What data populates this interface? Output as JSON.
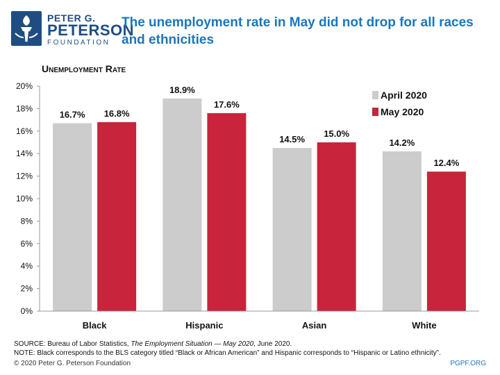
{
  "logo": {
    "line1": "PETER G.",
    "line2": "PETERSON",
    "line3": "FOUNDATION"
  },
  "title": "The unemployment rate in May did not drop for all races and ethnicities",
  "chart_data": {
    "type": "bar",
    "ylabel": "Unemployment Rate",
    "categories": [
      "Black",
      "Hispanic",
      "Asian",
      "White"
    ],
    "series": [
      {
        "name": "April 2020",
        "color": "#cccccc",
        "values": [
          16.7,
          18.9,
          14.5,
          14.2
        ],
        "labels": [
          "16.7%",
          "18.9%",
          "14.5%",
          "14.2%"
        ]
      },
      {
        "name": "May 2020",
        "color": "#c8243b",
        "values": [
          16.8,
          17.6,
          15.0,
          12.4
        ],
        "labels": [
          "16.8%",
          "17.6%",
          "15.0%",
          "12.4%"
        ]
      }
    ],
    "ylim": [
      0,
      20
    ],
    "yticks": [
      "0%",
      "2%",
      "4%",
      "6%",
      "8%",
      "10%",
      "12%",
      "14%",
      "16%",
      "18%",
      "20%"
    ],
    "legend_position": "top-right",
    "grid": false
  },
  "footer": {
    "source_prefix": "SOURCE: Bureau of Labor Statistics, ",
    "source_italic": "The Employment Situation — May 2020",
    "source_suffix": ", June 2020.",
    "note": "NOTE: Black corresponds to the BLS category titled “Black or African American” and Hispanic corresponds to “Hispanic or Latino ethnicity”.",
    "copyright": "© 2020 Peter G. Peterson Foundation",
    "url": "PGPF.ORG"
  }
}
